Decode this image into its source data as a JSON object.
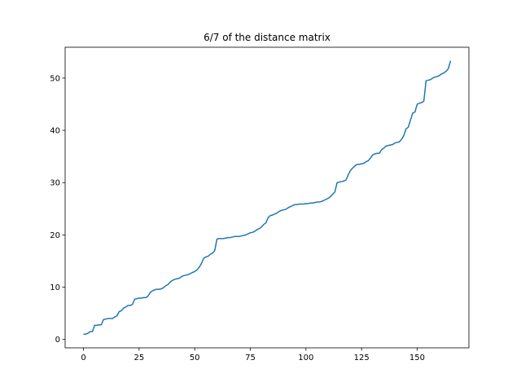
{
  "chart_data": {
    "type": "line",
    "title": "6/7 of the distance matrix",
    "x": [
      0,
      1,
      2,
      3,
      4,
      5,
      6,
      7,
      8,
      9,
      10,
      11,
      12,
      13,
      14,
      15,
      16,
      17,
      18,
      19,
      20,
      21,
      22,
      23,
      24,
      25,
      26,
      27,
      28,
      29,
      30,
      31,
      32,
      33,
      34,
      35,
      36,
      37,
      38,
      39,
      40,
      41,
      42,
      43,
      44,
      45,
      46,
      47,
      48,
      49,
      50,
      51,
      52,
      53,
      54,
      55,
      56,
      57,
      58,
      59,
      60,
      61,
      62,
      63,
      64,
      65,
      66,
      67,
      68,
      69,
      70,
      71,
      72,
      73,
      74,
      75,
      76,
      77,
      78,
      79,
      80,
      81,
      82,
      83,
      84,
      85,
      86,
      87,
      88,
      89,
      90,
      91,
      92,
      93,
      94,
      95,
      96,
      97,
      98,
      99,
      100,
      101,
      102,
      103,
      104,
      105,
      106,
      107,
      108,
      109,
      110,
      111,
      112,
      113,
      114,
      115,
      116,
      117,
      118,
      119,
      120,
      121,
      122,
      123,
      124,
      125,
      126,
      127,
      128,
      129,
      130,
      131,
      132,
      133,
      134,
      135,
      136,
      137,
      138,
      139,
      140,
      141,
      142,
      143,
      144,
      145,
      146,
      147,
      148,
      149,
      150,
      151,
      152,
      153,
      154,
      155,
      156,
      157,
      158,
      159,
      160,
      161,
      162,
      163,
      164,
      165
    ],
    "values": [
      1.0,
      1.0,
      1.2,
      1.5,
      1.5,
      2.7,
      2.7,
      2.8,
      2.8,
      3.8,
      3.9,
      4.0,
      4.0,
      4.0,
      4.3,
      4.5,
      5.3,
      5.5,
      6.0,
      6.2,
      6.5,
      6.5,
      6.7,
      7.7,
      7.8,
      7.9,
      7.9,
      8.0,
      8.0,
      8.3,
      9.0,
      9.3,
      9.5,
      9.6,
      9.6,
      9.7,
      9.9,
      10.3,
      10.5,
      11.0,
      11.3,
      11.5,
      11.6,
      11.7,
      12.0,
      12.2,
      12.3,
      12.4,
      12.6,
      12.8,
      13.0,
      13.3,
      13.8,
      14.5,
      15.5,
      15.8,
      15.9,
      16.3,
      16.5,
      17.0,
      19.2,
      19.3,
      19.3,
      19.3,
      19.4,
      19.5,
      19.5,
      19.6,
      19.7,
      19.7,
      19.7,
      19.8,
      19.9,
      20.0,
      20.2,
      20.4,
      20.5,
      20.7,
      21.0,
      21.2,
      21.5,
      22.0,
      22.3,
      23.3,
      23.7,
      23.8,
      24.0,
      24.2,
      24.5,
      24.7,
      24.8,
      24.9,
      25.2,
      25.4,
      25.6,
      25.8,
      25.8,
      25.9,
      25.9,
      25.9,
      26.0,
      26.0,
      26.1,
      26.1,
      26.2,
      26.3,
      26.3,
      26.4,
      26.6,
      26.8,
      27.0,
      27.3,
      27.8,
      28.2,
      30.0,
      30.1,
      30.2,
      30.3,
      30.5,
      31.5,
      32.3,
      32.8,
      33.2,
      33.5,
      33.5,
      33.6,
      33.7,
      34.0,
      34.2,
      34.7,
      35.3,
      35.5,
      35.6,
      35.6,
      36.3,
      36.6,
      37.0,
      37.1,
      37.2,
      37.3,
      37.6,
      37.7,
      37.8,
      38.3,
      39.0,
      40.3,
      40.6,
      42.0,
      43.3,
      43.5,
      45.0,
      45.2,
      45.3,
      45.6,
      49.5,
      49.6,
      49.7,
      50.0,
      50.2,
      50.3,
      50.5,
      50.8,
      51.0,
      51.3,
      51.8,
      53.3
    ],
    "color": "#1f77b4",
    "xlim": [
      -8.25,
      173.25
    ],
    "xticks": [
      0,
      25,
      50,
      75,
      100,
      125,
      150
    ],
    "ylim": [
      -1.6,
      55.9
    ],
    "yticks": [
      0,
      10,
      20,
      30,
      40,
      50
    ],
    "grid": false
  }
}
